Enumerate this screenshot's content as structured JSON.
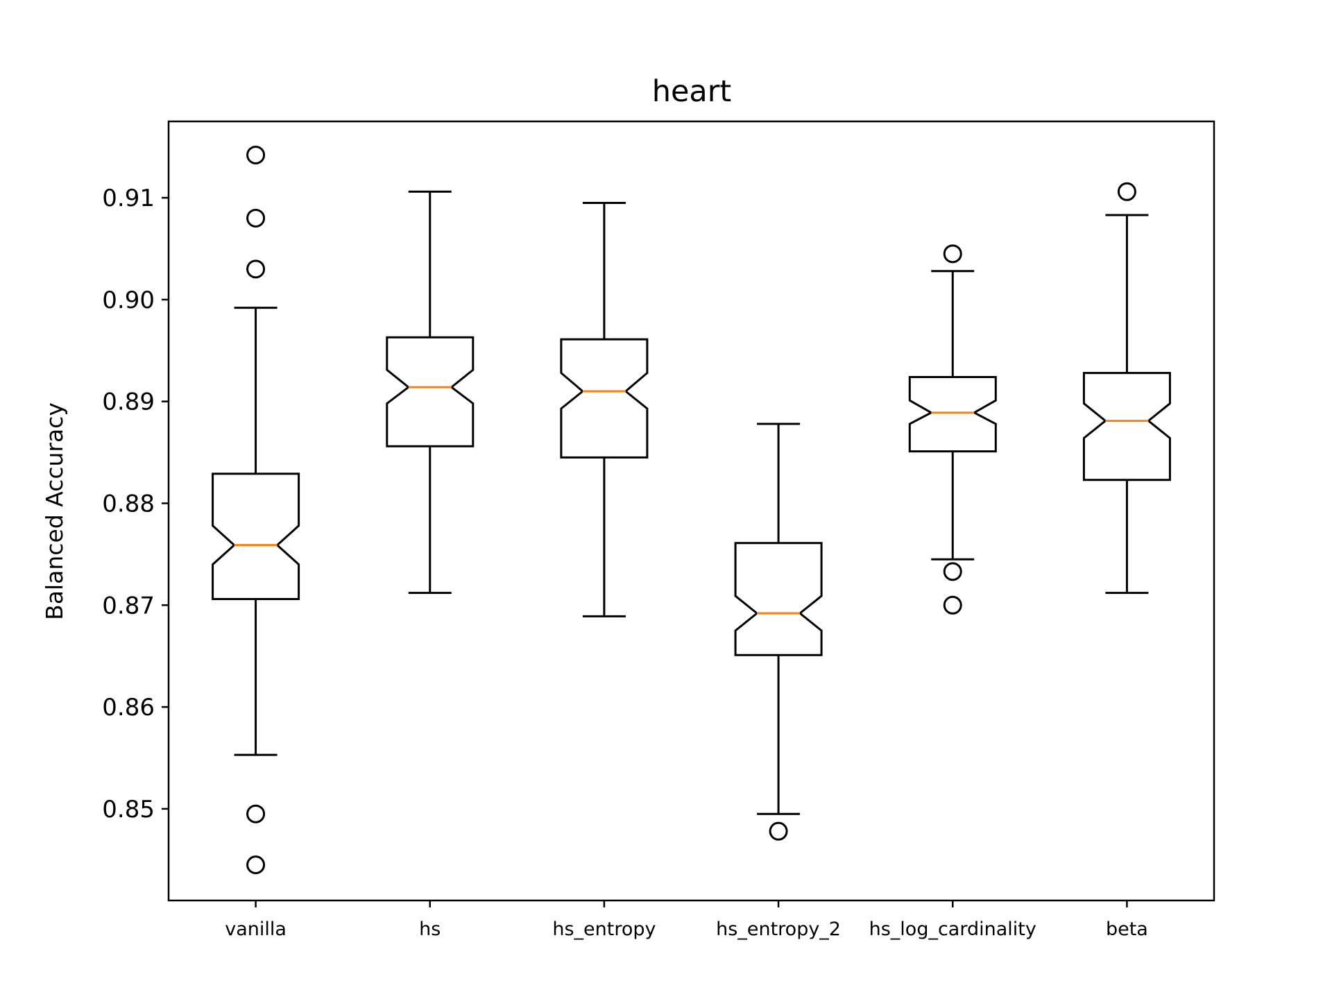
{
  "chart_data": {
    "type": "boxplot",
    "title": "heart",
    "xlabel": "",
    "ylabel": "Balanced Accuracy",
    "ylim": [
      0.841,
      0.9175
    ],
    "yticks": [
      {
        "value": 0.85,
        "label": "0.85"
      },
      {
        "value": 0.86,
        "label": "0.86"
      },
      {
        "value": 0.87,
        "label": "0.87"
      },
      {
        "value": 0.88,
        "label": "0.88"
      },
      {
        "value": 0.89,
        "label": "0.89"
      },
      {
        "value": 0.9,
        "label": "0.90"
      },
      {
        "value": 0.91,
        "label": "0.91"
      }
    ],
    "grid": false,
    "notched": true,
    "colors": {
      "box": "#000000",
      "median": "#ff7f0e",
      "flier": "#000000",
      "background": "#ffffff"
    },
    "boxes": [
      {
        "label": "vanilla",
        "whisker_low": 0.8553,
        "q1": 0.8706,
        "notch_low": 0.874,
        "median": 0.8759,
        "notch_high": 0.8778,
        "q3": 0.8829,
        "whisker_high": 0.8992,
        "fliers": [
          0.9142,
          0.908,
          0.903,
          0.8495,
          0.8445
        ]
      },
      {
        "label": "hs",
        "whisker_low": 0.8712,
        "q1": 0.8856,
        "notch_low": 0.8898,
        "median": 0.8914,
        "notch_high": 0.8931,
        "q3": 0.8963,
        "whisker_high": 0.9106,
        "fliers": []
      },
      {
        "label": "hs_entropy",
        "whisker_low": 0.8689,
        "q1": 0.8845,
        "notch_low": 0.8893,
        "median": 0.891,
        "notch_high": 0.8928,
        "q3": 0.8961,
        "whisker_high": 0.9095,
        "fliers": []
      },
      {
        "label": "hs_entropy_2",
        "whisker_low": 0.8495,
        "q1": 0.8651,
        "notch_low": 0.8675,
        "median": 0.8692,
        "notch_high": 0.8709,
        "q3": 0.8761,
        "whisker_high": 0.8878,
        "fliers": [
          0.8478
        ]
      },
      {
        "label": "hs_log_cardinality",
        "whisker_low": 0.8745,
        "q1": 0.8851,
        "notch_low": 0.8878,
        "median": 0.8889,
        "notch_high": 0.8901,
        "q3": 0.8924,
        "whisker_high": 0.9028,
        "fliers": [
          0.9045,
          0.8733,
          0.87
        ]
      },
      {
        "label": "beta",
        "whisker_low": 0.8712,
        "q1": 0.8823,
        "notch_low": 0.8864,
        "median": 0.8881,
        "notch_high": 0.8898,
        "q3": 0.8928,
        "whisker_high": 0.9083,
        "fliers": [
          0.9106
        ]
      }
    ]
  }
}
